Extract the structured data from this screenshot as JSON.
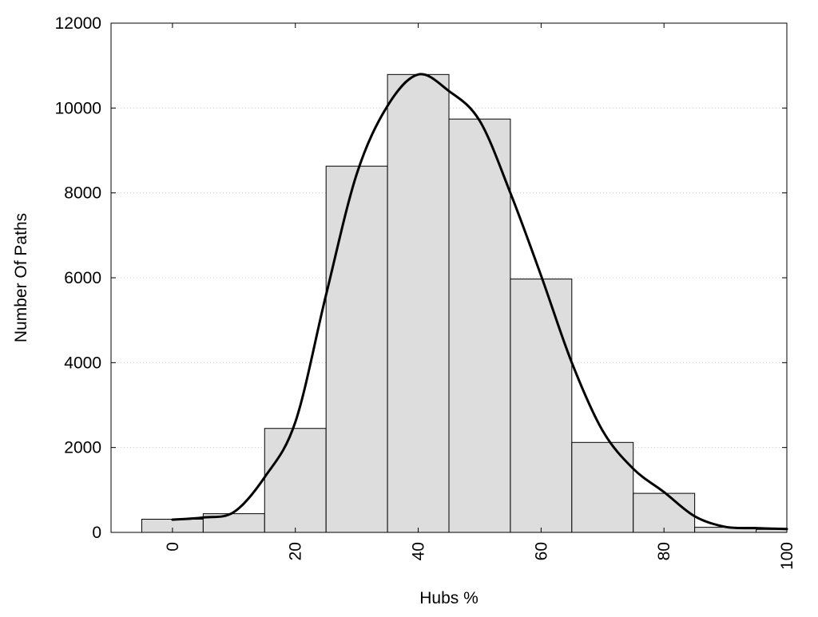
{
  "chart_data": {
    "type": "bar",
    "title": "",
    "xlabel": "Hubs %",
    "ylabel": "Number Of Paths",
    "xlim": [
      -10,
      100
    ],
    "ylim": [
      0,
      12000
    ],
    "x_ticks": [
      0,
      20,
      40,
      60,
      80,
      100
    ],
    "y_ticks": [
      0,
      2000,
      4000,
      6000,
      8000,
      10000,
      12000
    ],
    "grid": "horizontal dotted",
    "bin_width": 10,
    "bins": [
      {
        "center": 0,
        "value": 310
      },
      {
        "center": 10,
        "value": 440
      },
      {
        "center": 20,
        "value": 2450
      },
      {
        "center": 30,
        "value": 8630
      },
      {
        "center": 40,
        "value": 10790
      },
      {
        "center": 50,
        "value": 9740
      },
      {
        "center": 60,
        "value": 5970
      },
      {
        "center": 70,
        "value": 2120
      },
      {
        "center": 80,
        "value": 920
      },
      {
        "center": 90,
        "value": 120
      },
      {
        "center": 100,
        "value": 70
      }
    ],
    "curve": {
      "x": [
        0,
        5,
        10,
        15,
        20,
        25,
        30,
        35,
        40,
        45,
        50,
        55,
        60,
        65,
        70,
        75,
        80,
        85,
        90,
        95,
        100
      ],
      "y": [
        300,
        350,
        480,
        1300,
        2600,
        5600,
        8450,
        10050,
        10790,
        10400,
        9700,
        8000,
        6050,
        4000,
        2400,
        1500,
        950,
        380,
        130,
        100,
        80
      ]
    },
    "colors": {
      "bar_fill": "#dddddd",
      "bar_stroke": "#000000",
      "curve": "#000000",
      "grid": "#cccccc"
    }
  }
}
